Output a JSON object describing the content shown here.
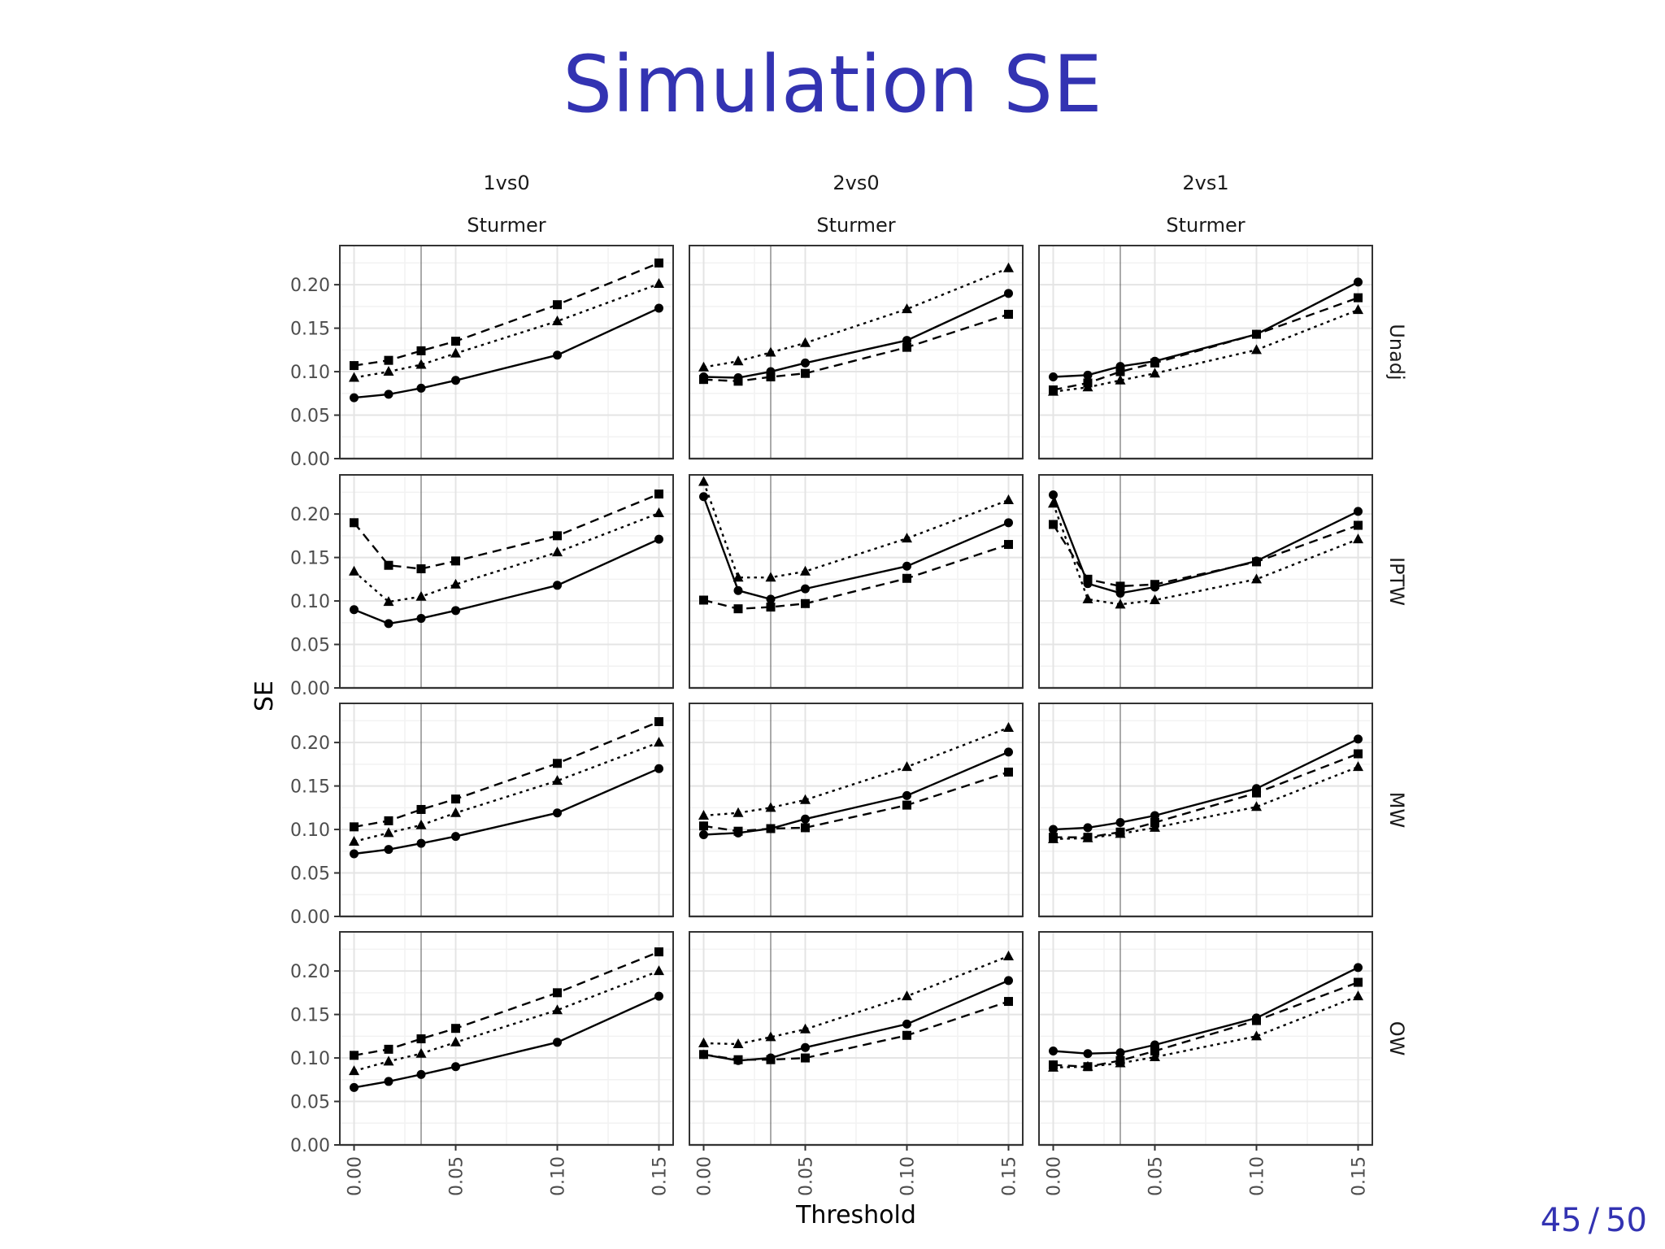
{
  "slide": {
    "title": "Simulation SE",
    "page_current": "45",
    "page_separator": "/",
    "page_total": "50"
  },
  "chart_data": {
    "type": "line",
    "layout": "facet-grid 4 rows x 3 columns",
    "xlabel": "Threshold",
    "ylabel": "SE",
    "x_ticks": [
      0.0,
      0.05,
      0.1,
      0.15
    ],
    "x_tick_labels": [
      "0.00",
      "0.05",
      "0.10",
      "0.15"
    ],
    "y_ticks": [
      0.0,
      0.05,
      0.1,
      0.15,
      0.2
    ],
    "y_tick_labels": [
      "0.00",
      "0.05",
      "0.10",
      "0.15",
      "0.20"
    ],
    "xlim": [
      -0.007,
      0.157
    ],
    "ylim": [
      0.0,
      0.245
    ],
    "vline_x": 0.033,
    "hline_y": 0.0,
    "grid": true,
    "x": [
      0.0,
      0.017,
      0.033,
      0.05,
      0.1,
      0.15
    ],
    "columns": [
      {
        "label": "1vs0",
        "sublabel": "Sturmer"
      },
      {
        "label": "2vs0",
        "sublabel": "Sturmer"
      },
      {
        "label": "2vs1",
        "sublabel": "Sturmer"
      }
    ],
    "rows": [
      "Unadj",
      "IPTW",
      "MW",
      "OW"
    ],
    "series_styles": [
      {
        "marker": "circle",
        "line": "solid"
      },
      {
        "marker": "square",
        "line": "dashed"
      },
      {
        "marker": "triangle",
        "line": "dotted"
      }
    ],
    "panels": [
      [
        {
          "series": [
            [
              0.07,
              0.074,
              0.081,
              0.09,
              0.119,
              0.173
            ],
            [
              0.107,
              0.113,
              0.124,
              0.135,
              0.177,
              0.225
            ],
            [
              0.093,
              0.1,
              0.108,
              0.121,
              0.158,
              0.201
            ]
          ]
        },
        {
          "series": [
            [
              0.094,
              0.093,
              0.1,
              0.11,
              0.136,
              0.19
            ],
            [
              0.091,
              0.089,
              0.094,
              0.098,
              0.128,
              0.166
            ],
            [
              0.105,
              0.112,
              0.122,
              0.133,
              0.172,
              0.219
            ]
          ]
        },
        {
          "series": [
            [
              0.094,
              0.096,
              0.106,
              0.112,
              0.143,
              0.203
            ],
            [
              0.079,
              0.087,
              0.1,
              0.11,
              0.143,
              0.185
            ],
            [
              0.077,
              0.082,
              0.09,
              0.098,
              0.125,
              0.171
            ]
          ]
        }
      ],
      [
        {
          "series": [
            [
              0.09,
              0.074,
              0.08,
              0.089,
              0.118,
              0.171
            ],
            [
              0.19,
              0.141,
              0.137,
              0.146,
              0.175,
              0.223
            ],
            [
              0.134,
              0.099,
              0.105,
              0.119,
              0.156,
              0.201
            ]
          ]
        },
        {
          "series": [
            [
              0.22,
              0.112,
              0.102,
              0.114,
              0.14,
              0.19
            ],
            [
              0.101,
              0.091,
              0.093,
              0.097,
              0.126,
              0.165
            ],
            [
              0.237,
              0.127,
              0.127,
              0.134,
              0.172,
              0.216
            ]
          ]
        },
        {
          "series": [
            [
              0.222,
              0.12,
              0.109,
              0.116,
              0.146,
              0.203
            ],
            [
              0.188,
              0.125,
              0.117,
              0.119,
              0.145,
              0.187
            ],
            [
              0.212,
              0.102,
              0.096,
              0.101,
              0.125,
              0.171
            ]
          ]
        }
      ],
      [
        {
          "series": [
            [
              0.072,
              0.077,
              0.084,
              0.092,
              0.119,
              0.17
            ],
            [
              0.103,
              0.11,
              0.123,
              0.135,
              0.176,
              0.224
            ],
            [
              0.086,
              0.096,
              0.105,
              0.119,
              0.156,
              0.2
            ]
          ]
        },
        {
          "series": [
            [
              0.094,
              0.096,
              0.101,
              0.112,
              0.139,
              0.189
            ],
            [
              0.104,
              0.098,
              0.101,
              0.102,
              0.128,
              0.166
            ],
            [
              0.116,
              0.119,
              0.125,
              0.134,
              0.172,
              0.217
            ]
          ]
        },
        {
          "series": [
            [
              0.1,
              0.102,
              0.108,
              0.116,
              0.147,
              0.204
            ],
            [
              0.091,
              0.091,
              0.097,
              0.108,
              0.142,
              0.187
            ],
            [
              0.089,
              0.09,
              0.095,
              0.102,
              0.126,
              0.172
            ]
          ]
        }
      ],
      [
        {
          "series": [
            [
              0.066,
              0.073,
              0.081,
              0.09,
              0.118,
              0.171
            ],
            [
              0.103,
              0.11,
              0.122,
              0.134,
              0.175,
              0.222
            ],
            [
              0.085,
              0.096,
              0.105,
              0.118,
              0.155,
              0.2
            ]
          ]
        },
        {
          "series": [
            [
              0.104,
              0.097,
              0.1,
              0.112,
              0.139,
              0.189
            ],
            [
              0.104,
              0.098,
              0.098,
              0.1,
              0.126,
              0.165
            ],
            [
              0.117,
              0.116,
              0.124,
              0.133,
              0.171,
              0.217
            ]
          ]
        },
        {
          "series": [
            [
              0.108,
              0.105,
              0.106,
              0.115,
              0.146,
              0.204
            ],
            [
              0.092,
              0.09,
              0.097,
              0.108,
              0.143,
              0.187
            ],
            [
              0.089,
              0.09,
              0.094,
              0.101,
              0.125,
              0.171
            ]
          ]
        }
      ]
    ]
  }
}
